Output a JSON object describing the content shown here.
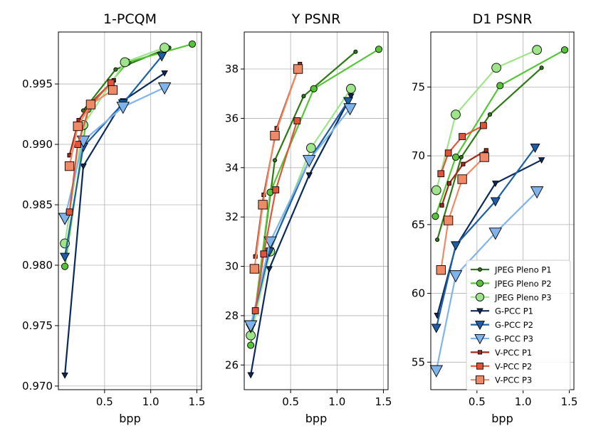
{
  "chart_data": [
    {
      "type": "line",
      "title": "1-PCQM",
      "xlabel": "bpp",
      "ylabel": "",
      "xlim": [
        0.0,
        1.55
      ],
      "ylim": [
        0.9697,
        0.9993
      ],
      "xticks": [
        {
          "v": 0.5,
          "label": "0.5"
        },
        {
          "v": 1.0,
          "label": "1.0"
        },
        {
          "v": 1.5,
          "label": "1.5"
        }
      ],
      "yticks": [
        {
          "v": 0.97,
          "label": "0.970"
        },
        {
          "v": 0.975,
          "label": "0.975"
        },
        {
          "v": 0.98,
          "label": "0.980"
        },
        {
          "v": 0.985,
          "label": "0.985"
        },
        {
          "v": 0.99,
          "label": "0.990"
        },
        {
          "v": 0.995,
          "label": "0.995"
        }
      ],
      "grid": true,
      "series": [
        {
          "name": "JPEG Pleno P1",
          "x": [
            0.27,
            0.62,
            1.2
          ],
          "y": [
            0.9928,
            0.9962,
            0.998
          ]
        },
        {
          "name": "JPEG Pleno P2",
          "x": [
            0.07,
            0.32,
            0.75,
            1.45
          ],
          "y": [
            0.9799,
            0.9929,
            0.9968,
            0.9983
          ]
        },
        {
          "name": "JPEG Pleno P3",
          "x": [
            0.07,
            0.27,
            0.72,
            1.15
          ],
          "y": [
            0.9818,
            0.9916,
            0.9968,
            0.998
          ]
        },
        {
          "name": "G-PCC P1",
          "x": [
            0.07,
            0.27,
            0.7,
            1.15
          ],
          "y": [
            0.9709,
            0.9882,
            0.9936,
            0.9959
          ]
        },
        {
          "name": "G-PCC P2",
          "x": [
            0.07,
            0.27,
            0.7,
            1.12
          ],
          "y": [
            0.9807,
            0.9898,
            0.9934,
            0.9973
          ]
        },
        {
          "name": "G-PCC P3",
          "x": [
            0.07,
            0.27,
            0.7,
            1.15
          ],
          "y": [
            0.9839,
            0.9903,
            0.9931,
            0.9947
          ]
        },
        {
          "name": "V-PCC P1",
          "x": [
            0.12,
            0.22,
            0.36,
            0.6
          ],
          "y": [
            0.9891,
            0.992,
            0.9935,
            0.9953
          ]
        },
        {
          "name": "V-PCC P2",
          "x": [
            0.12,
            0.21,
            0.34,
            0.57
          ],
          "y": [
            0.9844,
            0.99,
            0.9932,
            0.9951
          ]
        },
        {
          "name": "V-PCC P3",
          "x": [
            0.12,
            0.21,
            0.35,
            0.59
          ],
          "y": [
            0.9882,
            0.9915,
            0.9933,
            0.9945
          ]
        }
      ]
    },
    {
      "type": "line",
      "title": "Y PSNR",
      "xlabel": "bpp",
      "ylabel": "",
      "xlim": [
        0.0,
        1.55
      ],
      "ylim": [
        25.0,
        39.5
      ],
      "xticks": [
        {
          "v": 0.5,
          "label": "0.5"
        },
        {
          "v": 1.0,
          "label": "1.0"
        },
        {
          "v": 1.5,
          "label": "1.5"
        }
      ],
      "yticks": [
        {
          "v": 26,
          "label": "26"
        },
        {
          "v": 28,
          "label": "28"
        },
        {
          "v": 30,
          "label": "30"
        },
        {
          "v": 32,
          "label": "32"
        },
        {
          "v": 34,
          "label": "34"
        },
        {
          "v": 36,
          "label": "36"
        },
        {
          "v": 38,
          "label": "38"
        }
      ],
      "grid": true,
      "series": [
        {
          "name": "JPEG Pleno P1",
          "x": [
            0.07,
            0.33,
            0.64,
            1.2
          ],
          "y": [
            26.8,
            34.3,
            36.9,
            38.7
          ]
        },
        {
          "name": "JPEG Pleno P2",
          "x": [
            0.07,
            0.28,
            0.75,
            1.45
          ],
          "y": [
            26.8,
            33.0,
            37.2,
            38.8
          ]
        },
        {
          "name": "JPEG Pleno P3",
          "x": [
            0.07,
            0.28,
            0.72,
            1.15
          ],
          "y": [
            27.2,
            30.6,
            34.8,
            37.2
          ]
        },
        {
          "name": "G-PCC P1",
          "x": [
            0.07,
            0.27,
            0.7,
            1.15
          ],
          "y": [
            25.6,
            29.9,
            33.7,
            36.9
          ]
        },
        {
          "name": "G-PCC P2",
          "x": [
            0.07,
            0.27,
            0.7,
            1.12
          ],
          "y": [
            27.5,
            30.6,
            34.3,
            36.7
          ]
        },
        {
          "name": "G-PCC P3",
          "x": [
            0.07,
            0.28,
            0.7,
            1.14
          ],
          "y": [
            27.6,
            31.0,
            34.3,
            36.4
          ]
        },
        {
          "name": "V-PCC P1",
          "x": [
            0.12,
            0.21,
            0.35,
            0.6
          ],
          "y": [
            30.4,
            32.9,
            35.6,
            38.2
          ]
        },
        {
          "name": "V-PCC P2",
          "x": [
            0.12,
            0.21,
            0.34,
            0.57
          ],
          "y": [
            28.2,
            30.5,
            33.1,
            35.9
          ]
        },
        {
          "name": "V-PCC P3",
          "x": [
            0.11,
            0.2,
            0.33,
            0.58
          ],
          "y": [
            29.9,
            32.5,
            35.3,
            38.0
          ]
        }
      ]
    },
    {
      "type": "line",
      "title": "D1 PSNR",
      "xlabel": "bpp",
      "ylabel": "",
      "xlim": [
        0.0,
        1.55
      ],
      "ylim": [
        53.0,
        79.0
      ],
      "xticks": [
        {
          "v": 0.5,
          "label": "0.5"
        },
        {
          "v": 1.0,
          "label": "1.0"
        },
        {
          "v": 1.5,
          "label": "1.5"
        }
      ],
      "yticks": [
        {
          "v": 55,
          "label": "55"
        },
        {
          "v": 60,
          "label": "60"
        },
        {
          "v": 65,
          "label": "65"
        },
        {
          "v": 70,
          "label": "70"
        },
        {
          "v": 75,
          "label": "75"
        }
      ],
      "grid": true,
      "legend": "lower-right",
      "series": [
        {
          "name": "JPEG Pleno P1",
          "color": "#2d7a14",
          "marker": "circle",
          "size": 2.6,
          "x": [
            0.07,
            0.33,
            0.64,
            1.2
          ],
          "y": [
            63.9,
            69.9,
            73.0,
            76.4
          ]
        },
        {
          "name": "JPEG Pleno P2",
          "color": "#55c535",
          "marker": "circle",
          "size": 4.6,
          "x": [
            0.05,
            0.27,
            0.75,
            1.45
          ],
          "y": [
            65.6,
            69.9,
            75.1,
            77.7
          ]
        },
        {
          "name": "JPEG Pleno P3",
          "color": "#9ee58a",
          "marker": "circle",
          "size": 6.4,
          "x": [
            0.06,
            0.27,
            0.71,
            1.15
          ],
          "y": [
            67.5,
            73.0,
            76.4,
            77.7
          ]
        },
        {
          "name": "G-PCC P1",
          "color": "#0a2a5c",
          "marker": "tri",
          "size": 3.2,
          "x": [
            0.07,
            0.27,
            0.7,
            1.2
          ],
          "y": [
            58.4,
            63.4,
            68.0,
            69.7
          ]
        },
        {
          "name": "G-PCC P2",
          "color": "#1c5fa6",
          "marker": "tri",
          "size": 5.0,
          "x": [
            0.06,
            0.27,
            0.7,
            1.13
          ],
          "y": [
            57.5,
            63.5,
            66.7,
            70.6
          ]
        },
        {
          "name": "G-PCC P3",
          "color": "#7fb3ec",
          "marker": "tri",
          "size": 6.8,
          "x": [
            0.06,
            0.27,
            0.7,
            1.15
          ],
          "y": [
            54.4,
            61.3,
            64.4,
            67.4
          ]
        },
        {
          "name": "V-PCC P1",
          "color": "#a52a18",
          "marker": "square",
          "size": 2.6,
          "x": [
            0.12,
            0.2,
            0.35,
            0.6
          ],
          "y": [
            66.4,
            68.0,
            69.4,
            70.4
          ]
        },
        {
          "name": "V-PCC P2",
          "color": "#e0553a",
          "marker": "square",
          "size": 4.4,
          "x": [
            0.11,
            0.19,
            0.34,
            0.57
          ],
          "y": [
            68.7,
            70.2,
            71.4,
            72.2
          ]
        },
        {
          "name": "V-PCC P3",
          "color": "#f08a66",
          "marker": "square",
          "size": 6.2,
          "x": [
            0.11,
            0.19,
            0.34,
            0.58
          ],
          "y": [
            61.7,
            65.3,
            68.3,
            69.9
          ]
        }
      ]
    }
  ]
}
